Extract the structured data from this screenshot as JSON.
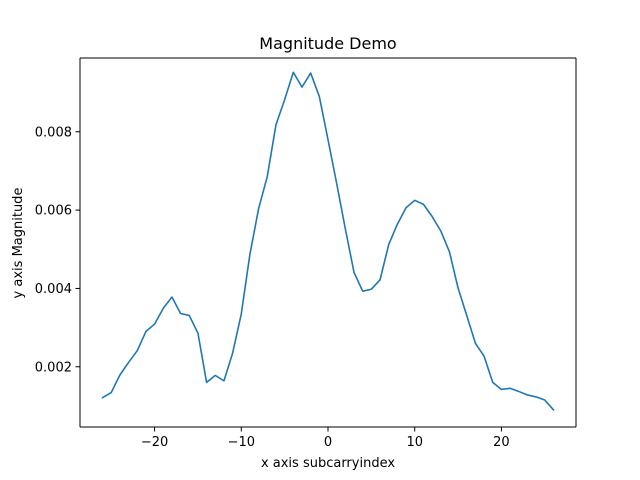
{
  "chart_data": {
    "type": "line",
    "title": "Magnitude Demo",
    "xlabel": "x axis subcarryindex",
    "ylabel": "y axis Magnitude",
    "xlim": [
      -28.6,
      28.6
    ],
    "ylim": [
      0.000462,
      0.009884
    ],
    "x_ticks": [
      -20,
      -10,
      0,
      10,
      20
    ],
    "x_tick_labels": [
      "−20",
      "−10",
      "0",
      "10",
      "20"
    ],
    "y_ticks": [
      0.002,
      0.004,
      0.006,
      0.008
    ],
    "y_tick_labels": [
      "0.002",
      "0.004",
      "0.006",
      "0.008"
    ],
    "grid": false,
    "legend": "none",
    "series": [
      {
        "color": "#1f77b4",
        "x": [
          -26,
          -25,
          -24,
          -23,
          -22,
          -21,
          -20,
          -19,
          -18,
          -17,
          -16,
          -15,
          -14,
          -13,
          -12,
          -11,
          -10,
          -9,
          -8,
          -7,
          -6,
          -5,
          -4,
          -3,
          -2,
          -1,
          0,
          1,
          2,
          3,
          4,
          5,
          6,
          7,
          8,
          9,
          10,
          11,
          12,
          13,
          14,
          15,
          16,
          17,
          18,
          19,
          20,
          21,
          22,
          23,
          24,
          25,
          26
        ],
        "y": [
          0.00121,
          0.00134,
          0.00179,
          0.00211,
          0.00241,
          0.0029,
          0.00309,
          0.00349,
          0.00378,
          0.00336,
          0.00331,
          0.00286,
          0.0016,
          0.00178,
          0.00164,
          0.00235,
          0.00335,
          0.00488,
          0.00604,
          0.00686,
          0.00818,
          0.00882,
          0.00952,
          0.00914,
          0.0095,
          0.0089,
          0.0078,
          0.00668,
          0.00552,
          0.00441,
          0.00393,
          0.00398,
          0.00422,
          0.00512,
          0.00564,
          0.00606,
          0.00625,
          0.00615,
          0.00584,
          0.00547,
          0.00494,
          0.00401,
          0.00331,
          0.0026,
          0.00227,
          0.0016,
          0.00142,
          0.00145,
          0.00137,
          0.00128,
          0.00123,
          0.00115,
          0.0009
        ]
      }
    ]
  }
}
